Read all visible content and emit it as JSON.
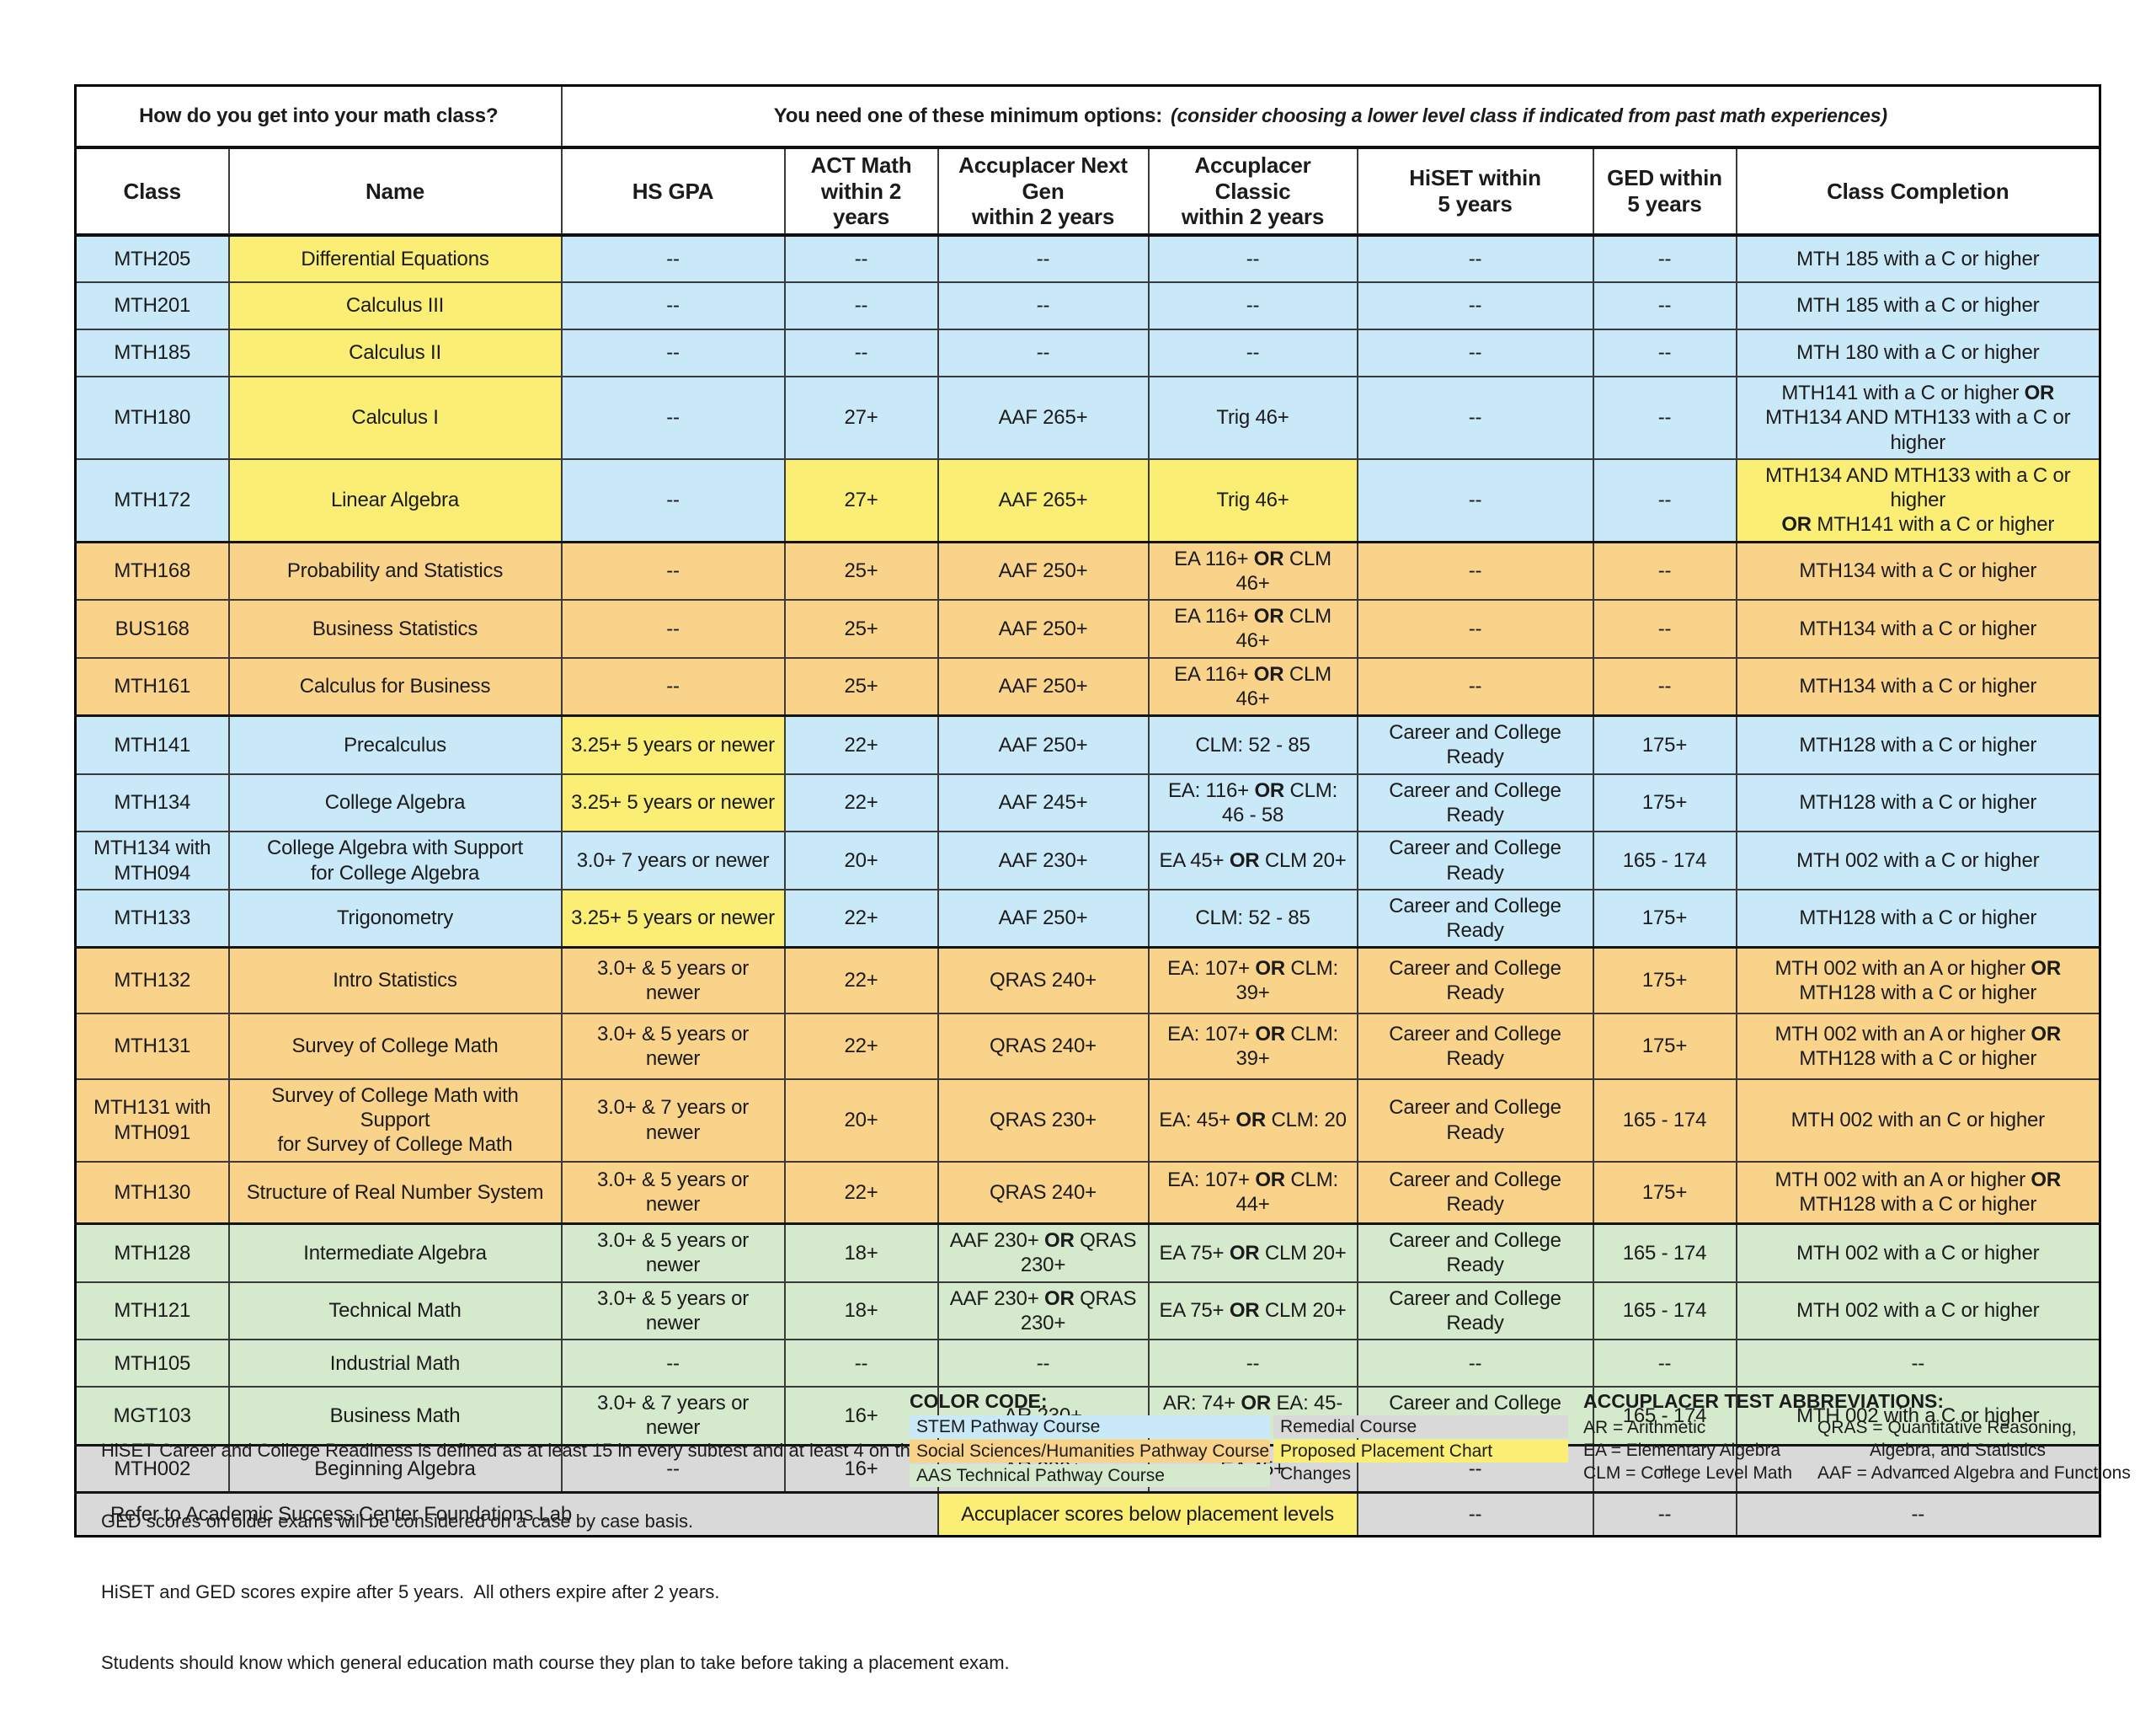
{
  "colors": {
    "blue": "#c9e8f8",
    "orange": "#fad38b",
    "green": "#d5e9cd",
    "gray": "#d9d9d9",
    "yellow": "#fbee74"
  },
  "title": {
    "left": "How do you get into your math class?",
    "right_main": "You need one of these minimum options:",
    "right_note": "(consider choosing a lower level class if indicated from past math experiences)"
  },
  "table": {
    "columns": [
      {
        "l1": "Class",
        "l2": ""
      },
      {
        "l1": "Name",
        "l2": ""
      },
      {
        "l1": "HS GPA",
        "l2": ""
      },
      {
        "l1": "ACT Math",
        "l2": "within 2 years"
      },
      {
        "l1": "Accuplacer Next Gen",
        "l2": "within 2 years"
      },
      {
        "l1": "Accuplacer Classic",
        "l2": "within 2 years"
      },
      {
        "l1": "HiSET within",
        "l2": "5 years"
      },
      {
        "l1": "GED within",
        "l2": "5 years"
      },
      {
        "l1": "Class Completion",
        "l2": ""
      }
    ],
    "rows": [
      {
        "color": "blue",
        "cells": [
          {
            "t": "MTH205"
          },
          {
            "t": "Differential Equations",
            "hl": true
          },
          {
            "t": "--"
          },
          {
            "t": "--"
          },
          {
            "t": "--"
          },
          {
            "t": "--"
          },
          {
            "t": "--"
          },
          {
            "t": "--"
          },
          {
            "t": "MTH 185 with a C or higher"
          }
        ]
      },
      {
        "color": "blue",
        "cells": [
          {
            "t": "MTH201"
          },
          {
            "t": "Calculus III",
            "hl": true
          },
          {
            "t": "--"
          },
          {
            "t": "--"
          },
          {
            "t": "--"
          },
          {
            "t": "--"
          },
          {
            "t": "--"
          },
          {
            "t": "--"
          },
          {
            "t": "MTH 185 with a C or higher"
          }
        ]
      },
      {
        "color": "blue",
        "cells": [
          {
            "t": "MTH185"
          },
          {
            "t": "Calculus II",
            "hl": true
          },
          {
            "t": "--"
          },
          {
            "t": "--"
          },
          {
            "t": "--"
          },
          {
            "t": "--"
          },
          {
            "t": "--"
          },
          {
            "t": "--"
          },
          {
            "t": "MTH 180 with a C or higher"
          }
        ]
      },
      {
        "color": "blue",
        "cells": [
          {
            "t": "MTH180"
          },
          {
            "t": "Calculus I",
            "hl": true
          },
          {
            "t": "--"
          },
          {
            "t": "27+"
          },
          {
            "t": "AAF 265+"
          },
          {
            "t": "Trig 46+"
          },
          {
            "t": "--"
          },
          {
            "t": "--"
          },
          {
            "t": "MTH141 with a C or higher **OR**\nMTH134 AND MTH133 with a C or higher"
          }
        ]
      },
      {
        "color": "blue",
        "cells": [
          {
            "t": "MTH172"
          },
          {
            "t": "Linear Algebra",
            "hl": true
          },
          {
            "t": "--"
          },
          {
            "t": "27+",
            "hl": true
          },
          {
            "t": "AAF 265+",
            "hl": true
          },
          {
            "t": "Trig 46+",
            "hl": true
          },
          {
            "t": "--"
          },
          {
            "t": "--"
          },
          {
            "t": "MTH134 AND MTH133 with a C or higher\n**OR** MTH141 with a C or higher",
            "hl": true
          }
        ]
      },
      {
        "color": "orange",
        "cells": [
          {
            "t": "MTH168"
          },
          {
            "t": "Probability and Statistics"
          },
          {
            "t": "--"
          },
          {
            "t": "25+"
          },
          {
            "t": "AAF 250+"
          },
          {
            "t": "EA 116+ **OR** CLM 46+"
          },
          {
            "t": "--"
          },
          {
            "t": "--"
          },
          {
            "t": "MTH134 with a C or higher"
          }
        ]
      },
      {
        "color": "orange",
        "cells": [
          {
            "t": "BUS168"
          },
          {
            "t": "Business Statistics"
          },
          {
            "t": "--"
          },
          {
            "t": "25+"
          },
          {
            "t": "AAF 250+"
          },
          {
            "t": "EA 116+ **OR** CLM 46+"
          },
          {
            "t": "--"
          },
          {
            "t": "--"
          },
          {
            "t": "MTH134 with a C or higher"
          }
        ]
      },
      {
        "color": "orange",
        "cells": [
          {
            "t": "MTH161"
          },
          {
            "t": "Calculus for Business"
          },
          {
            "t": "--"
          },
          {
            "t": "25+"
          },
          {
            "t": "AAF 250+"
          },
          {
            "t": "EA 116+ **OR** CLM 46+"
          },
          {
            "t": "--"
          },
          {
            "t": "--"
          },
          {
            "t": "MTH134 with a C or higher"
          }
        ]
      },
      {
        "color": "blue",
        "cells": [
          {
            "t": "MTH141"
          },
          {
            "t": "Precalculus"
          },
          {
            "t": "3.25+ 5 years or newer",
            "hl": true
          },
          {
            "t": "22+"
          },
          {
            "t": "AAF 250+"
          },
          {
            "t": "CLM: 52 - 85"
          },
          {
            "t": "Career and College Ready"
          },
          {
            "t": "175+"
          },
          {
            "t": "MTH128 with a C or higher"
          }
        ]
      },
      {
        "color": "blue",
        "cells": [
          {
            "t": "MTH134"
          },
          {
            "t": "College Algebra"
          },
          {
            "t": "3.25+ 5 years or newer",
            "hl": true
          },
          {
            "t": "22+"
          },
          {
            "t": "AAF 245+"
          },
          {
            "t": "EA: 116+ **OR** CLM: 46 - 58"
          },
          {
            "t": "Career and College Ready"
          },
          {
            "t": "175+"
          },
          {
            "t": "MTH128 with a C or higher"
          }
        ]
      },
      {
        "color": "blue",
        "cells": [
          {
            "t": "MTH134 with MTH094"
          },
          {
            "t": "College Algebra with Support\nfor College Algebra"
          },
          {
            "t": "3.0+ 7 years or newer"
          },
          {
            "t": "20+"
          },
          {
            "t": "AAF 230+"
          },
          {
            "t": "EA 45+ **OR** CLM 20+"
          },
          {
            "t": "Career and College Ready"
          },
          {
            "t": "165 - 174"
          },
          {
            "t": "MTH 002 with a C or higher"
          }
        ]
      },
      {
        "color": "blue",
        "cells": [
          {
            "t": "MTH133"
          },
          {
            "t": "Trigonometry"
          },
          {
            "t": "3.25+ 5 years or newer",
            "hl": true
          },
          {
            "t": "22+"
          },
          {
            "t": "AAF 250+"
          },
          {
            "t": "CLM: 52 - 85"
          },
          {
            "t": "Career and College Ready"
          },
          {
            "t": "175+"
          },
          {
            "t": "MTH128 with a C or higher"
          }
        ]
      },
      {
        "color": "orange",
        "cells": [
          {
            "t": "MTH132"
          },
          {
            "t": "Intro Statistics"
          },
          {
            "t": "3.0+ & 5 years or newer"
          },
          {
            "t": "22+"
          },
          {
            "t": "QRAS 240+"
          },
          {
            "t": "EA: 107+ **OR** CLM: 39+"
          },
          {
            "t": "Career and College Ready"
          },
          {
            "t": "175+"
          },
          {
            "t": "MTH 002 with an A or higher **OR**\nMTH128 with a C or higher"
          }
        ]
      },
      {
        "color": "orange",
        "cells": [
          {
            "t": "MTH131"
          },
          {
            "t": "Survey of College Math"
          },
          {
            "t": "3.0+ & 5 years or newer"
          },
          {
            "t": "22+"
          },
          {
            "t": "QRAS 240+"
          },
          {
            "t": "EA: 107+ **OR** CLM: 39+"
          },
          {
            "t": "Career and College Ready"
          },
          {
            "t": "175+"
          },
          {
            "t": "MTH 002 with an A or higher **OR**\nMTH128 with a C or higher"
          }
        ]
      },
      {
        "color": "orange",
        "cells": [
          {
            "t": "MTH131 with MTH091"
          },
          {
            "t": "Survey of College Math with Support\nfor Survey of College Math"
          },
          {
            "t": "3.0+ & 7 years or newer"
          },
          {
            "t": "20+"
          },
          {
            "t": "QRAS 230+"
          },
          {
            "t": "EA: 45+ **OR** CLM: 20"
          },
          {
            "t": "Career and College Ready"
          },
          {
            "t": "165 - 174"
          },
          {
            "t": "MTH 002 with an C or higher"
          }
        ]
      },
      {
        "color": "orange",
        "cells": [
          {
            "t": "MTH130"
          },
          {
            "t": "Structure of Real Number System"
          },
          {
            "t": "3.0+ & 5 years or newer"
          },
          {
            "t": "22+"
          },
          {
            "t": "QRAS 240+"
          },
          {
            "t": "EA: 107+ **OR** CLM: 44+"
          },
          {
            "t": "Career and College Ready"
          },
          {
            "t": "175+"
          },
          {
            "t": "MTH 002 with an A or higher **OR**\nMTH128 with a C or higher"
          }
        ]
      },
      {
        "color": "green",
        "cells": [
          {
            "t": "MTH128"
          },
          {
            "t": "Intermediate Algebra"
          },
          {
            "t": "3.0+ & 5 years or newer"
          },
          {
            "t": "18+"
          },
          {
            "t": "AAF 230+ **OR** QRAS 230+"
          },
          {
            "t": "EA 75+ **OR** CLM 20+"
          },
          {
            "t": "Career and College Ready"
          },
          {
            "t": "165 - 174"
          },
          {
            "t": "MTH 002 with a C or higher"
          }
        ]
      },
      {
        "color": "green",
        "cells": [
          {
            "t": "MTH121"
          },
          {
            "t": "Technical Math"
          },
          {
            "t": "3.0+ & 5 years or newer"
          },
          {
            "t": "18+"
          },
          {
            "t": "AAF 230+ **OR** QRAS 230+"
          },
          {
            "t": "EA 75+ **OR** CLM 20+"
          },
          {
            "t": "Career and College Ready"
          },
          {
            "t": "165 - 174"
          },
          {
            "t": "MTH 002 with a C or higher"
          }
        ]
      },
      {
        "color": "green",
        "cells": [
          {
            "t": "MTH105"
          },
          {
            "t": "Industrial Math"
          },
          {
            "t": "--"
          },
          {
            "t": "--"
          },
          {
            "t": "--"
          },
          {
            "t": "--"
          },
          {
            "t": "--"
          },
          {
            "t": "--"
          },
          {
            "t": "--"
          }
        ]
      },
      {
        "color": "green",
        "cells": [
          {
            "t": "MGT103"
          },
          {
            "t": "Business Math"
          },
          {
            "t": "3.0+ & 7 years or newer"
          },
          {
            "t": "16+"
          },
          {
            "t": "AR 230+"
          },
          {
            "t": "AR: 74+ **OR** EA: 45-74"
          },
          {
            "t": "Career and College Ready"
          },
          {
            "t": "165 - 174"
          },
          {
            "t": "MTH 002 with a C or higher"
          }
        ]
      },
      {
        "color": "gray",
        "cells": [
          {
            "t": "MTH002"
          },
          {
            "t": "Beginning Algebra"
          },
          {
            "t": "--"
          },
          {
            "t": "16+"
          },
          {
            "t": "AR 230+"
          },
          {
            "t": "EA 45+"
          },
          {
            "t": "--"
          },
          {
            "t": "--"
          },
          {
            "t": "--"
          }
        ]
      },
      {
        "color": "gray",
        "footer": true,
        "cells": [
          {
            "t": "Refer to Academic Success Center Foundations Lab",
            "span": 4,
            "align": "left"
          },
          {
            "t": "Accuplacer scores below placement levels",
            "span": 2,
            "hl": true
          },
          {
            "t": "--"
          },
          {
            "t": "--"
          },
          {
            "t": "--"
          }
        ]
      }
    ]
  },
  "notes": [
    "HiSET Career and College Readiness is defined as at least 15 in every subtest and at least 4 on the essay.",
    "GED scores on older exams will be considered on a case by case basis.",
    "HiSET and GED scores expire after 5 years.  All others expire after 2 years.",
    "Students should know which general education math course they plan to take before taking a placement exam."
  ],
  "legend": {
    "title": "COLOR CODE:",
    "items": [
      {
        "label": "STEM Pathway Course",
        "color": "blue"
      },
      {
        "label": "Social Sciences/Humanities Pathway Course",
        "color": "orange"
      },
      {
        "label": "AAS Technical Pathway Course",
        "color": "green"
      },
      {
        "label": "Remedial Course",
        "color": "gray"
      },
      {
        "label": "Proposed Placement Chart Changes",
        "color": "yellow"
      }
    ]
  },
  "abbr": {
    "title": "ACCUPLACER TEST ABBREVIATIONS:",
    "left": [
      "AR = Arithmetic",
      "EA = Elementary Algebra",
      "CLM = College Level Math"
    ],
    "right": [
      "QRAS = Quantitative Reasoning,",
      "Algebra, and Statistics",
      "AAF = Advanced Algebra and Functions"
    ]
  }
}
